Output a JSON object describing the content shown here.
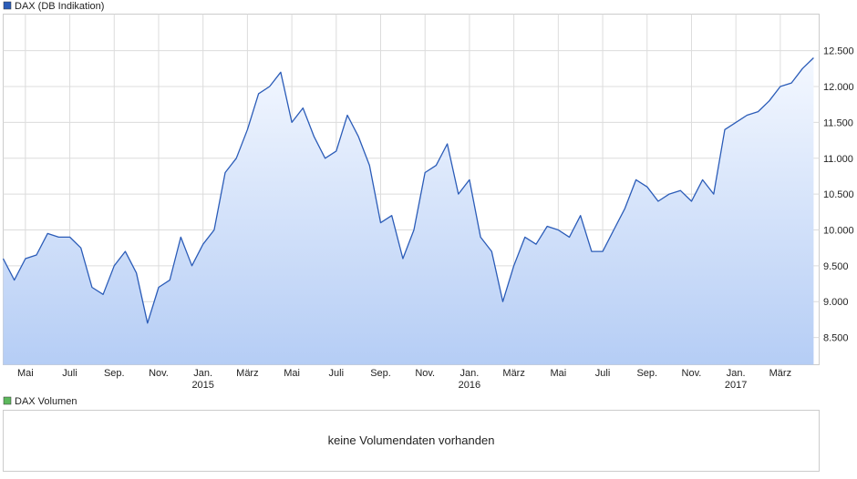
{
  "chart_data": [
    {
      "type": "area",
      "series": [
        {
          "name": "DAX (DB Indikation)",
          "color": "#2b5cb8",
          "values": [
            9600,
            9300,
            9600,
            9650,
            9950,
            9900,
            9900,
            9750,
            9200,
            9100,
            9500,
            9700,
            9400,
            8700,
            9200,
            9300,
            9900,
            9500,
            9800,
            10000,
            10800,
            11000,
            11400,
            11900,
            12000,
            12200,
            11500,
            11700,
            11300,
            11000,
            11100,
            11600,
            11300,
            10900,
            10100,
            10200,
            9600,
            10000,
            10800,
            10900,
            11200,
            10500,
            10700,
            9900,
            9700,
            9000,
            9500,
            9900,
            9800,
            10050,
            10000,
            9900,
            10200,
            9700,
            9700,
            10000,
            10300,
            10700,
            10600,
            10400,
            10500,
            10550,
            10400,
            10700,
            10500,
            11400,
            11500,
            11600,
            11650,
            11800,
            12000,
            12050,
            12250,
            12400
          ]
        }
      ],
      "xlim": [
        0,
        73.5
      ],
      "xticks": [
        {
          "value": 2,
          "label": "Mai"
        },
        {
          "value": 6,
          "label": "Juli"
        },
        {
          "value": 10,
          "label": "Sep."
        },
        {
          "value": 14,
          "label": "Nov."
        },
        {
          "value": 18,
          "label": "Jan. 2015"
        },
        {
          "value": 22,
          "label": "März"
        },
        {
          "value": 26,
          "label": "Mai"
        },
        {
          "value": 30,
          "label": "Juli"
        },
        {
          "value": 34,
          "label": "Sep."
        },
        {
          "value": 38,
          "label": "Nov."
        },
        {
          "value": 42,
          "label": "Jan. 2016"
        },
        {
          "value": 46,
          "label": "März"
        },
        {
          "value": 50,
          "label": "Mai"
        },
        {
          "value": 54,
          "label": "Juli"
        },
        {
          "value": 58,
          "label": "Sep."
        },
        {
          "value": 62,
          "label": "Nov."
        },
        {
          "value": 66,
          "label": "Jan. 2017"
        },
        {
          "value": 70,
          "label": "März"
        }
      ],
      "ylim": [
        8120,
        13010
      ],
      "yticks": [
        {
          "value": 8500,
          "label": "8.500"
        },
        {
          "value": 9000,
          "label": "9.000"
        },
        {
          "value": 9500,
          "label": "9.500"
        },
        {
          "value": 10000,
          "label": "10.000"
        },
        {
          "value": 10500,
          "label": "10.500"
        },
        {
          "value": 11000,
          "label": "11.000"
        },
        {
          "value": 11500,
          "label": "11.500"
        },
        {
          "value": 12000,
          "label": "12.000"
        },
        {
          "value": 12500,
          "label": "12.500"
        }
      ],
      "grid": true
    },
    {
      "type": "empty",
      "title": "DAX Volumen",
      "color": "#5cb85c",
      "note": "keine Volumendaten vorhanden"
    }
  ]
}
